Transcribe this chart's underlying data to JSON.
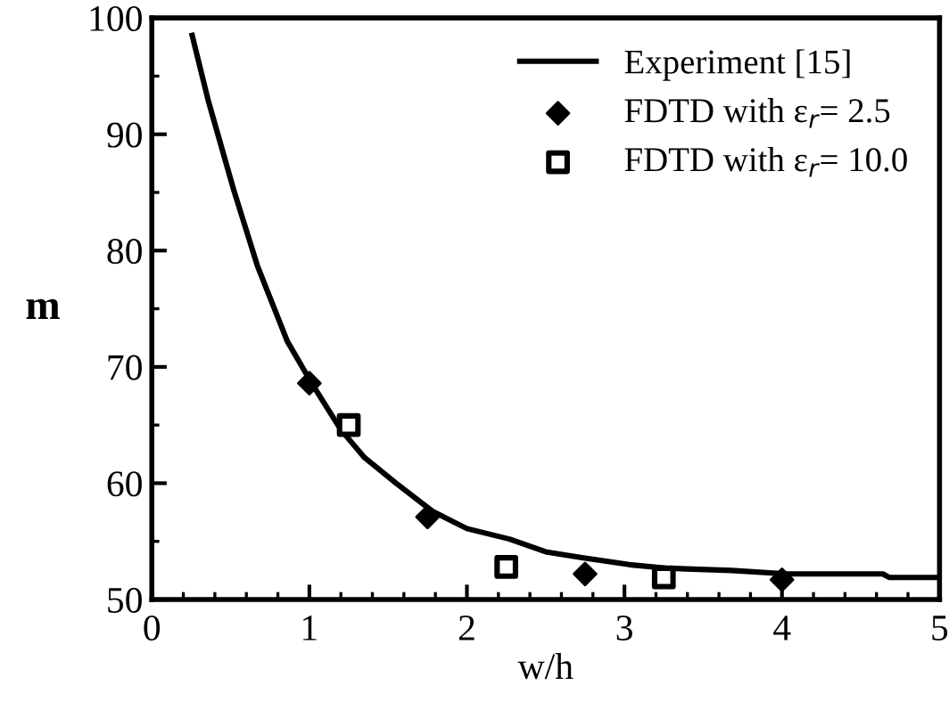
{
  "chart_data": {
    "type": "line",
    "xlabel": "w/h",
    "ylabel": "m",
    "xlim": [
      0,
      5
    ],
    "ylim": [
      50,
      100
    ],
    "xticks": [
      0,
      1,
      2,
      3,
      4,
      5
    ],
    "yticks": [
      50,
      60,
      70,
      80,
      90,
      100
    ],
    "grid": false,
    "legend": "top right",
    "series": [
      {
        "name": "Experiment [15]",
        "color": "#000000",
        "marker": "none",
        "line_style": "solid",
        "x": [
          0.256,
          0.36,
          0.52,
          0.67,
          0.86,
          1.01,
          1.2,
          1.35,
          1.55,
          1.78,
          2.0,
          2.27,
          2.5,
          2.73,
          3.03,
          3.26,
          3.68,
          4.03,
          4.64,
          4.68,
          5.0
        ],
        "values": [
          98.5,
          92.8,
          85.2,
          78.7,
          72.2,
          68.7,
          64.6,
          62.2,
          60.0,
          57.6,
          56.1,
          55.2,
          54.1,
          53.6,
          53.0,
          52.7,
          52.5,
          52.2,
          52.2,
          51.9,
          51.9
        ]
      },
      {
        "name": "FDTD with ε$_{r}$= 2.5",
        "type": "scatter",
        "color": "#000000",
        "marker": "diamond",
        "x": [
          1.0,
          1.75,
          2.75,
          4.0
        ],
        "values": [
          68.6,
          57.1,
          52.2,
          51.7
        ]
      },
      {
        "name": "FDTD with ε$_{r}$= 10.0",
        "type": "scatter",
        "color": "#000000",
        "marker": "square",
        "x": [
          1.25,
          2.25,
          3.25
        ],
        "values": [
          65.0,
          52.8,
          51.9
        ]
      }
    ]
  }
}
